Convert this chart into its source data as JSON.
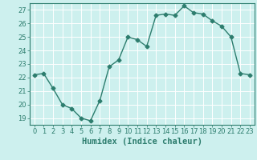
{
  "x": [
    0,
    1,
    2,
    3,
    4,
    5,
    6,
    7,
    8,
    9,
    10,
    11,
    12,
    13,
    14,
    15,
    16,
    17,
    18,
    19,
    20,
    21,
    22,
    23
  ],
  "y": [
    22.2,
    22.3,
    21.2,
    20.0,
    19.7,
    19.0,
    18.8,
    20.3,
    22.8,
    23.3,
    25.0,
    24.8,
    24.3,
    26.6,
    26.7,
    26.6,
    27.3,
    26.8,
    26.7,
    26.2,
    25.8,
    25.0,
    22.3,
    22.2
  ],
  "line_color": "#2d7d6e",
  "marker": "D",
  "markersize": 2.5,
  "linewidth": 1.0,
  "xlabel": "Humidex (Indice chaleur)",
  "ylim": [
    18.5,
    27.5
  ],
  "yticks": [
    19,
    20,
    21,
    22,
    23,
    24,
    25,
    26,
    27
  ],
  "xticks": [
    0,
    1,
    2,
    3,
    4,
    5,
    6,
    7,
    8,
    9,
    10,
    11,
    12,
    13,
    14,
    15,
    16,
    17,
    18,
    19,
    20,
    21,
    22,
    23
  ],
  "bg_color": "#cdf0ee",
  "grid_color": "#ffffff",
  "tick_fontsize": 6,
  "xlabel_fontsize": 7.5
}
